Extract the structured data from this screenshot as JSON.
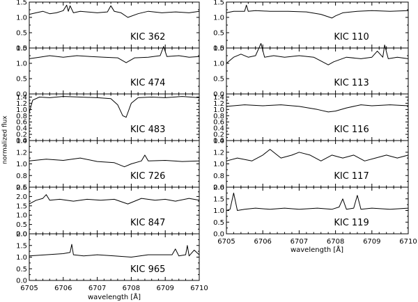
{
  "ylabel": "normalized flux",
  "chart_data": [
    {
      "type": "line",
      "label": "KIC 362",
      "xlim": [
        6705,
        6710
      ],
      "ylim": [
        0.0,
        1.5
      ],
      "yticks": [
        "0.0",
        "0.5",
        "1.0",
        "1.5"
      ],
      "x": [
        6705.0,
        6705.2,
        6705.4,
        6705.6,
        6705.8,
        6706.0,
        6706.1,
        6706.15,
        6706.2,
        6706.3,
        6706.5,
        6707.0,
        6707.3,
        6707.4,
        6707.5,
        6707.7,
        6707.9,
        6708.2,
        6708.5,
        6708.9,
        6709.3,
        6709.7,
        6710.0
      ],
      "values": [
        1.1,
        1.15,
        1.2,
        1.12,
        1.15,
        1.22,
        1.4,
        1.2,
        1.38,
        1.15,
        1.2,
        1.15,
        1.18,
        1.38,
        1.2,
        1.15,
        1.0,
        1.12,
        1.2,
        1.15,
        1.18,
        1.15,
        1.2
      ]
    },
    {
      "type": "line",
      "label": "KIC 474",
      "xlim": [
        6705,
        6710
      ],
      "ylim": [
        0.0,
        1.5
      ],
      "yticks": [
        "0.0",
        "0.5",
        "1.0",
        "1.5"
      ],
      "x": [
        6705.0,
        6705.3,
        6705.6,
        6706.0,
        6706.4,
        6706.8,
        6707.2,
        6707.6,
        6707.85,
        6708.1,
        6708.5,
        6708.85,
        6708.95,
        6709.05,
        6709.4,
        6709.7,
        6710.0
      ],
      "values": [
        1.15,
        1.2,
        1.25,
        1.2,
        1.25,
        1.22,
        1.2,
        1.18,
        1.02,
        1.18,
        1.2,
        1.25,
        1.55,
        1.22,
        1.25,
        1.2,
        1.22
      ]
    },
    {
      "type": "line",
      "label": "KIC 483",
      "xlim": [
        6705,
        6710
      ],
      "ylim": [
        0.0,
        1.5
      ],
      "yticks": [
        "0.0",
        "0.2",
        "0.4",
        "0.6",
        "0.8",
        "1.0",
        "1.2",
        "1.4"
      ],
      "x": [
        6705.0,
        6705.1,
        6705.3,
        6705.6,
        6706.0,
        6706.5,
        6707.0,
        6707.4,
        6707.6,
        6707.75,
        6707.85,
        6708.0,
        6708.2,
        6708.6,
        6709.0,
        6709.5,
        6710.0
      ],
      "values": [
        0.9,
        1.3,
        1.4,
        1.38,
        1.42,
        1.4,
        1.38,
        1.35,
        1.15,
        0.8,
        0.75,
        1.2,
        1.38,
        1.4,
        1.38,
        1.42,
        1.38
      ]
    },
    {
      "type": "line",
      "label": "KIC 726",
      "xlim": [
        6705,
        6710
      ],
      "ylim": [
        0.6,
        1.4
      ],
      "yticks": [
        "0.6",
        "0.8",
        "1.0",
        "1.2",
        "1.4"
      ],
      "x": [
        6705.0,
        6705.5,
        6706.0,
        6706.5,
        6707.0,
        6707.5,
        6707.8,
        6708.0,
        6708.3,
        6708.4,
        6708.5,
        6709.0,
        6709.5,
        6710.0
      ],
      "values": [
        1.05,
        1.08,
        1.06,
        1.1,
        1.04,
        1.02,
        0.95,
        1.0,
        1.05,
        1.15,
        1.05,
        1.06,
        1.04,
        1.05
      ]
    },
    {
      "type": "line",
      "label": "KIC 847",
      "xlim": [
        6705,
        6710
      ],
      "ylim": [
        0.0,
        2.5
      ],
      "yticks": [
        "0.0",
        "0.5",
        "1.0",
        "1.5",
        "2.0",
        "2.5"
      ],
      "x": [
        6705.0,
        6705.2,
        6705.4,
        6705.5,
        6705.6,
        6705.9,
        6706.3,
        6706.7,
        6707.1,
        6707.5,
        6707.9,
        6708.3,
        6708.7,
        6709.0,
        6709.3,
        6709.7,
        6710.0
      ],
      "values": [
        1.6,
        1.8,
        1.9,
        2.1,
        1.8,
        1.85,
        1.75,
        1.85,
        1.8,
        1.85,
        1.6,
        1.9,
        1.8,
        1.85,
        1.75,
        1.9,
        1.8
      ]
    },
    {
      "type": "line",
      "label": "KIC 965",
      "xlim": [
        6705,
        6710
      ],
      "ylim": [
        0.0,
        2.0
      ],
      "yticks": [
        "0.0",
        "0.5",
        "1.0",
        "1.5",
        "2.0"
      ],
      "x": [
        6705.0,
        6705.5,
        6706.0,
        6706.2,
        6706.25,
        6706.3,
        6706.6,
        6707.0,
        6707.5,
        6708.0,
        6708.5,
        6709.0,
        6709.2,
        6709.3,
        6709.4,
        6709.6,
        6709.65,
        6709.7,
        6709.85,
        6710.0
      ],
      "values": [
        1.05,
        1.1,
        1.15,
        1.2,
        1.55,
        1.1,
        1.05,
        1.1,
        1.05,
        1.0,
        1.1,
        1.1,
        1.1,
        1.35,
        1.05,
        1.1,
        1.5,
        1.05,
        1.3,
        1.1
      ]
    },
    {
      "type": "line",
      "label": "KIC 110",
      "xlim": [
        6705,
        6710
      ],
      "ylim": [
        0.0,
        1.5
      ],
      "yticks": [
        "0.0",
        "0.5",
        "1.0",
        "1.5"
      ],
      "x": [
        6705.0,
        6705.2,
        6705.5,
        6705.55,
        6705.6,
        6705.8,
        6706.2,
        6706.7,
        6707.2,
        6707.6,
        6707.9,
        6708.0,
        6708.2,
        6708.6,
        6709.0,
        6709.5,
        6710.0
      ],
      "values": [
        1.15,
        1.2,
        1.2,
        1.4,
        1.2,
        1.22,
        1.2,
        1.2,
        1.18,
        1.1,
        0.98,
        1.05,
        1.15,
        1.2,
        1.22,
        1.2,
        1.22
      ]
    },
    {
      "type": "line",
      "label": "KIC 113",
      "xlim": [
        6705,
        6710
      ],
      "ylim": [
        0.0,
        1.5
      ],
      "yticks": [
        "0.0",
        "0.5",
        "1.0",
        "1.5"
      ],
      "x": [
        6705.0,
        6705.2,
        6705.4,
        6705.6,
        6705.8,
        6705.95,
        6706.05,
        6706.3,
        6706.6,
        6707.0,
        6707.4,
        6707.8,
        6707.95,
        6708.3,
        6708.7,
        6709.0,
        6709.15,
        6709.3,
        6709.35,
        6709.45,
        6709.7,
        6710.0
      ],
      "values": [
        1.0,
        1.2,
        1.3,
        1.2,
        1.25,
        1.65,
        1.2,
        1.25,
        1.2,
        1.25,
        1.2,
        0.95,
        1.05,
        1.2,
        1.15,
        1.2,
        1.4,
        1.2,
        1.6,
        1.15,
        1.2,
        1.15
      ]
    },
    {
      "type": "line",
      "label": "KIC 116",
      "xlim": [
        6705,
        6710
      ],
      "ylim": [
        0.0,
        1.5
      ],
      "yticks": [
        "0.0",
        "0.2",
        "0.4",
        "0.6",
        "0.8",
        "1.0",
        "1.2",
        "1.4"
      ],
      "x": [
        6705.0,
        6705.5,
        6706.0,
        6706.5,
        6707.0,
        6707.5,
        6707.8,
        6708.0,
        6708.3,
        6708.7,
        6709.0,
        6709.5,
        6710.0
      ],
      "values": [
        1.1,
        1.15,
        1.12,
        1.15,
        1.1,
        1.0,
        0.92,
        0.95,
        1.05,
        1.15,
        1.12,
        1.15,
        1.12
      ]
    },
    {
      "type": "line",
      "label": "KIC 117",
      "xlim": [
        6705,
        6710
      ],
      "ylim": [
        0.6,
        1.4
      ],
      "yticks": [
        "0.6",
        "0.8",
        "1.0",
        "1.2",
        "1.4"
      ],
      "x": [
        6705.0,
        6705.3,
        6705.7,
        6706.0,
        6706.2,
        6706.5,
        6706.8,
        6707.0,
        6707.3,
        6707.6,
        6707.9,
        6708.2,
        6708.5,
        6708.8,
        6709.1,
        6709.4,
        6709.7,
        6710.0
      ],
      "values": [
        1.05,
        1.1,
        1.05,
        1.15,
        1.25,
        1.1,
        1.15,
        1.2,
        1.15,
        1.05,
        1.15,
        1.1,
        1.15,
        1.05,
        1.1,
        1.15,
        1.1,
        1.15
      ]
    },
    {
      "type": "line",
      "label": "KIC 119",
      "xlim": [
        6705,
        6710
      ],
      "ylim": [
        0.0,
        2.0
      ],
      "yticks": [
        "0.0",
        "0.5",
        "1.0",
        "1.5",
        "2.0"
      ],
      "x": [
        6705.0,
        6705.1,
        6705.2,
        6705.3,
        6705.5,
        6705.8,
        6706.2,
        6706.6,
        6707.0,
        6707.5,
        6707.9,
        6708.1,
        6708.2,
        6708.3,
        6708.5,
        6708.6,
        6708.7,
        6709.0,
        6709.5,
        6710.0
      ],
      "values": [
        1.0,
        1.05,
        1.75,
        1.0,
        1.05,
        1.1,
        1.05,
        1.1,
        1.05,
        1.1,
        1.05,
        1.15,
        1.5,
        1.05,
        1.1,
        1.65,
        1.05,
        1.1,
        1.05,
        1.1
      ]
    }
  ],
  "layout": {
    "x_ticks": [
      "6705",
      "6706",
      "6707",
      "6708",
      "6709",
      "6710"
    ],
    "xlabel_left": "wavelength [Å]",
    "xlabel_right": "wavelength [Å]"
  }
}
